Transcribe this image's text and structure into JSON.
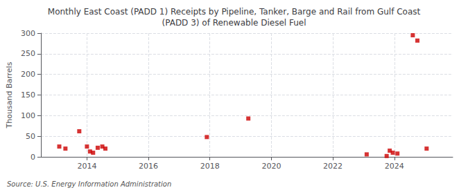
{
  "chart_data": {
    "type": "scatter",
    "title": "Monthly East Coast (PADD 1) Receipts by Pipeline, Tanker, Barge and Rail from Gulf Coast\n(PADD 3) of Renewable Diesel Fuel",
    "ylabel": "Thousand Barrels",
    "annotations": [
      "Source: U.S. Energy Information Administration"
    ],
    "x": [
      2013.1,
      2013.3,
      2013.75,
      2014.0,
      2014.1,
      2014.2,
      2014.35,
      2014.5,
      2014.6,
      2017.9,
      2019.25,
      2023.1,
      2023.75,
      2023.85,
      2023.95,
      2024.1,
      2024.6,
      2024.75,
      2025.05
    ],
    "values": [
      25,
      20,
      62,
      25,
      13,
      10,
      22,
      25,
      20,
      48,
      93,
      6,
      2,
      15,
      10,
      8,
      295,
      282,
      20
    ],
    "color": "#cc0000",
    "marker": "square",
    "xlim": [
      2012.5,
      2025.9
    ],
    "xticks": [
      2014,
      2016,
      2018,
      2020,
      2022,
      2024
    ],
    "ylim": [
      0,
      300
    ],
    "yticks": [
      0,
      50,
      100,
      150,
      200,
      250,
      300
    ],
    "grid": true
  }
}
